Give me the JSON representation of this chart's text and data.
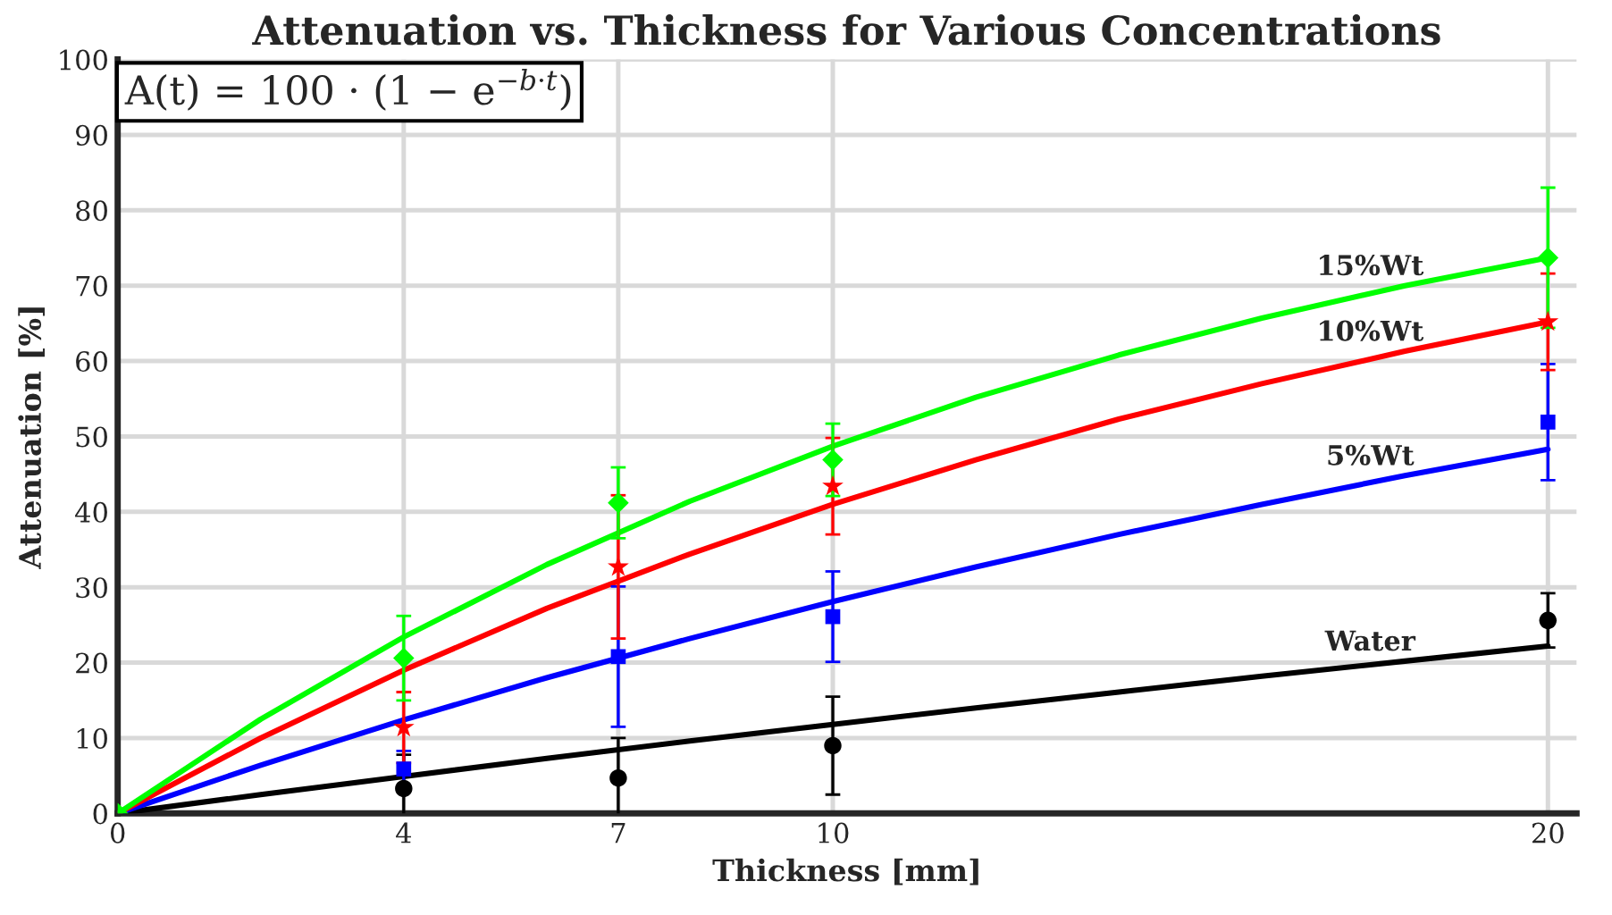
{
  "chart_data": {
    "type": "scatter",
    "title": "Attenuation vs. Thickness for Various Concentrations",
    "xlabel": "Thickness [mm]",
    "ylabel": "Attenuation [%]",
    "xlim": [
      0,
      20.4
    ],
    "xticks": [
      0,
      4,
      7,
      10,
      20
    ],
    "ylim": [
      0,
      100
    ],
    "yticks": [
      0,
      10,
      20,
      30,
      40,
      50,
      60,
      70,
      80,
      90,
      100
    ],
    "grid": true,
    "series": [
      {
        "type": "line",
        "name": "Water",
        "color": "#000000",
        "x": [
          0,
          2,
          4,
          6,
          8,
          10,
          12,
          14,
          16,
          18,
          20
        ],
        "values": [
          0,
          2.5,
          4.9,
          7.3,
          9.6,
          11.8,
          14.0,
          16.1,
          18.2,
          20.2,
          22.2
        ]
      },
      {
        "type": "line",
        "name": "5%Wt",
        "color": "#0000ff",
        "x": [
          0,
          2,
          4,
          6,
          8,
          10,
          12,
          14,
          16,
          18,
          20
        ],
        "values": [
          0,
          6.4,
          12.4,
          18.0,
          23.2,
          28.1,
          32.7,
          37.0,
          41.0,
          44.8,
          48.3
        ]
      },
      {
        "type": "line",
        "name": "10%Wt",
        "color": "#ff0000",
        "x": [
          0,
          2,
          4,
          6,
          8,
          10,
          12,
          14,
          16,
          18,
          20
        ],
        "values": [
          0,
          10.0,
          19.0,
          27.2,
          34.4,
          41.0,
          46.9,
          52.3,
          57.0,
          61.3,
          65.2
        ]
      },
      {
        "type": "line",
        "name": "15%Wt",
        "color": "#00ff00",
        "x": [
          0,
          2,
          4,
          6,
          8,
          10,
          12,
          14,
          16,
          18,
          20
        ],
        "values": [
          0,
          12.5,
          23.4,
          33.0,
          41.4,
          48.7,
          55.2,
          60.8,
          65.7,
          70.0,
          73.7
        ]
      },
      {
        "marker": "circle",
        "color": "#000000",
        "x": [
          4,
          7,
          10,
          20
        ],
        "values": [
          3.3,
          4.7,
          9.0,
          25.6
        ],
        "errors": [
          4.5,
          5.3,
          6.5,
          3.6
        ]
      },
      {
        "marker": "square",
        "color": "#0000ff",
        "x": [
          4,
          7,
          10,
          20
        ],
        "values": [
          5.9,
          20.8,
          26.1,
          51.9
        ],
        "errors": [
          2.4,
          9.3,
          6.0,
          7.7
        ]
      },
      {
        "marker": "star",
        "color": "#ff0000",
        "x": [
          4,
          7,
          10,
          20
        ],
        "values": [
          11.4,
          32.7,
          43.4,
          65.2
        ],
        "errors": [
          4.7,
          9.5,
          6.4,
          6.4
        ]
      },
      {
        "marker": "diamond",
        "color": "#00ff00",
        "x": [
          0,
          4,
          7,
          10,
          20
        ],
        "values": [
          0,
          20.6,
          41.2,
          46.9,
          73.7
        ],
        "errors": [
          null,
          5.6,
          4.7,
          4.8,
          9.3
        ]
      }
    ],
    "annotations": [
      "A(t) = 100 · (1 − e$^{−b·t}$)"
    ]
  }
}
